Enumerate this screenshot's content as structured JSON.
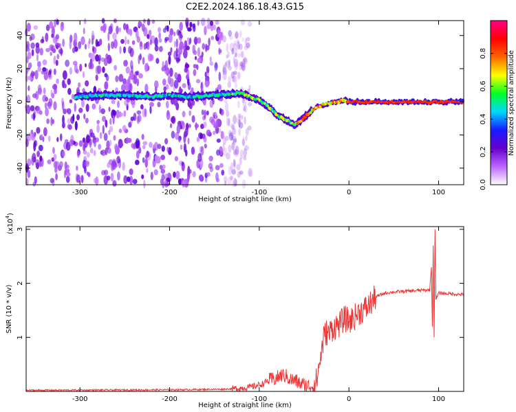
{
  "title": "C2E2.2024.186.18.43.G15",
  "chart_data": [
    {
      "type": "heatmap",
      "xlabel": "Height of straight line (km)",
      "ylabel": "Frequency (Hz)",
      "xlim": [
        -360,
        128
      ],
      "ylim": [
        -50,
        49
      ],
      "xticks": [
        -300,
        -200,
        -100,
        0,
        100
      ],
      "yticks": [
        -40,
        -20,
        0,
        20,
        40
      ],
      "grid": false,
      "track": {
        "x": [
          -305,
          -280,
          -250,
          -220,
          -200,
          -180,
          -150,
          -130,
          -120,
          -110,
          -100,
          -90,
          -80,
          -70,
          -60,
          -55,
          -45,
          -35,
          -25,
          -15,
          -5,
          0,
          30,
          60,
          85,
          90,
          95,
          128
        ],
        "y": [
          3,
          4,
          4,
          3,
          4,
          3,
          4,
          5,
          5,
          3,
          1,
          -3,
          -8,
          -11,
          -14,
          -12,
          -7,
          -3,
          -1,
          0,
          1,
          0,
          0,
          0,
          0,
          -1,
          0,
          0
        ]
      },
      "noise_region_x": [
        -360,
        -120
      ],
      "colorbar": {
        "label": "Normalized spectral amplitude",
        "range": [
          0,
          1
        ],
        "ticks": [
          "0.0",
          "0.2",
          "0.4",
          "0.6",
          "0.8"
        ],
        "colors": [
          "#ffffff",
          "#bb66ff",
          "#6600cc",
          "#1a1aff",
          "#00d9ff",
          "#00ff22",
          "#ffff00",
          "#ff6600",
          "#ff0000",
          "#ff0088"
        ]
      }
    },
    {
      "type": "line",
      "xlabel": "Height of straight line (km)",
      "ylabel": "SNR (10 * v/v)",
      "y_multiplier": "(x10",
      "y_multiplier_exp": "4",
      "y_multiplier_close": ")",
      "xlim": [
        -360,
        128
      ],
      "ylim": [
        0,
        3.05
      ],
      "xticks": [
        -300,
        -200,
        -100,
        0,
        100
      ],
      "yticks": [
        1,
        2,
        3
      ],
      "grid": false,
      "line_color": "#ee3333",
      "series": [
        {
          "x": [
            -360,
            -200,
            -140,
            -120,
            -110,
            -100,
            -95,
            -90,
            -85,
            -80,
            -75,
            -70,
            -65,
            -60,
            -55,
            -50,
            -45,
            -40,
            -36,
            -33,
            -30,
            -28,
            -25,
            -22,
            -20,
            -15,
            -10,
            -5,
            0,
            5,
            10,
            15,
            20,
            25,
            30,
            40,
            50,
            60,
            70,
            80,
            90,
            92,
            93,
            94,
            95,
            96,
            97,
            100,
            110,
            128
          ],
          "y": [
            0.02,
            0.03,
            0.04,
            0.06,
            0.08,
            0.12,
            0.15,
            0.2,
            0.22,
            0.25,
            0.3,
            0.28,
            0.22,
            0.2,
            0.15,
            0.12,
            0.1,
            0.1,
            0.2,
            0.5,
            0.8,
            1.0,
            1.1,
            1.05,
            1.15,
            1.2,
            1.25,
            1.35,
            1.3,
            1.35,
            1.45,
            1.5,
            1.55,
            1.65,
            1.75,
            1.82,
            1.84,
            1.85,
            1.86,
            1.87,
            1.88,
            2.3,
            1.2,
            2.7,
            1.0,
            3.0,
            1.7,
            1.82,
            1.81,
            1.79
          ]
        }
      ]
    }
  ]
}
